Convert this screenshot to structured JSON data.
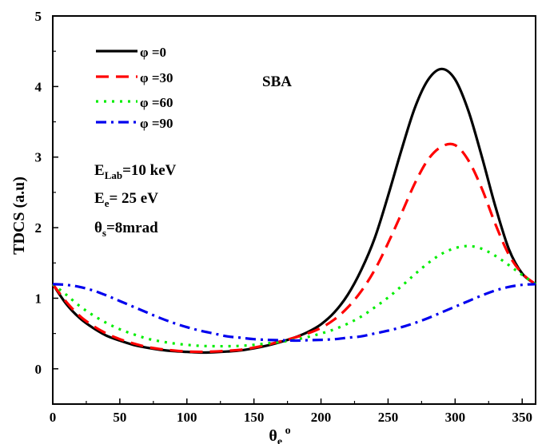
{
  "chart_data": {
    "type": "line",
    "title": "",
    "xlabel": "θe o",
    "ylabel": "TDCS (a.u)",
    "xlim": [
      0,
      360
    ],
    "ylim": [
      -0.5,
      5
    ],
    "xticks": [
      0,
      50,
      100,
      150,
      200,
      250,
      300,
      350
    ],
    "yticks": [
      0,
      1,
      2,
      3,
      4,
      5
    ],
    "grid": false,
    "legend_position": "top-left",
    "annotation_top": "SBA",
    "parameters": [
      "ELab=10 keV",
      "Ee= 25 eV",
      "θs=8mrad"
    ],
    "x": [
      0,
      10,
      20,
      30,
      40,
      50,
      60,
      70,
      80,
      90,
      100,
      110,
      120,
      130,
      140,
      150,
      160,
      170,
      180,
      190,
      200,
      210,
      220,
      230,
      240,
      250,
      260,
      270,
      280,
      290,
      300,
      310,
      320,
      330,
      340,
      350,
      360
    ],
    "series": [
      {
        "name": "φ =0",
        "color": "#000000",
        "dash": "solid",
        "values": [
          1.2,
          0.92,
          0.72,
          0.58,
          0.47,
          0.4,
          0.34,
          0.3,
          0.27,
          0.25,
          0.24,
          0.23,
          0.235,
          0.245,
          0.26,
          0.29,
          0.33,
          0.38,
          0.44,
          0.52,
          0.63,
          0.8,
          1.05,
          1.4,
          1.85,
          2.45,
          3.1,
          3.7,
          4.1,
          4.25,
          4.1,
          3.65,
          3.0,
          2.3,
          1.7,
          1.35,
          1.2
        ]
      },
      {
        "name": "φ =30",
        "color": "#ff0000",
        "dash": "dash",
        "values": [
          1.2,
          0.95,
          0.75,
          0.61,
          0.5,
          0.42,
          0.36,
          0.31,
          0.28,
          0.26,
          0.245,
          0.24,
          0.245,
          0.255,
          0.27,
          0.3,
          0.34,
          0.39,
          0.44,
          0.5,
          0.58,
          0.7,
          0.87,
          1.1,
          1.4,
          1.78,
          2.2,
          2.63,
          2.97,
          3.15,
          3.17,
          2.95,
          2.55,
          2.05,
          1.62,
          1.35,
          1.2
        ]
      },
      {
        "name": "φ =60",
        "color": "#00ee00",
        "dash": "dot",
        "values": [
          1.2,
          1.05,
          0.89,
          0.76,
          0.65,
          0.56,
          0.49,
          0.43,
          0.39,
          0.36,
          0.34,
          0.325,
          0.32,
          0.32,
          0.325,
          0.34,
          0.36,
          0.38,
          0.41,
          0.45,
          0.5,
          0.56,
          0.64,
          0.74,
          0.87,
          1.01,
          1.17,
          1.34,
          1.5,
          1.63,
          1.71,
          1.74,
          1.7,
          1.6,
          1.47,
          1.33,
          1.2
        ]
      },
      {
        "name": "φ =90",
        "color": "#0000ee",
        "dash": "dashdot",
        "values": [
          1.2,
          1.19,
          1.16,
          1.11,
          1.04,
          0.96,
          0.88,
          0.8,
          0.72,
          0.65,
          0.59,
          0.54,
          0.5,
          0.46,
          0.44,
          0.42,
          0.41,
          0.405,
          0.4,
          0.405,
          0.41,
          0.42,
          0.44,
          0.46,
          0.5,
          0.54,
          0.59,
          0.65,
          0.72,
          0.8,
          0.88,
          0.96,
          1.04,
          1.11,
          1.16,
          1.19,
          1.2
        ]
      }
    ]
  }
}
